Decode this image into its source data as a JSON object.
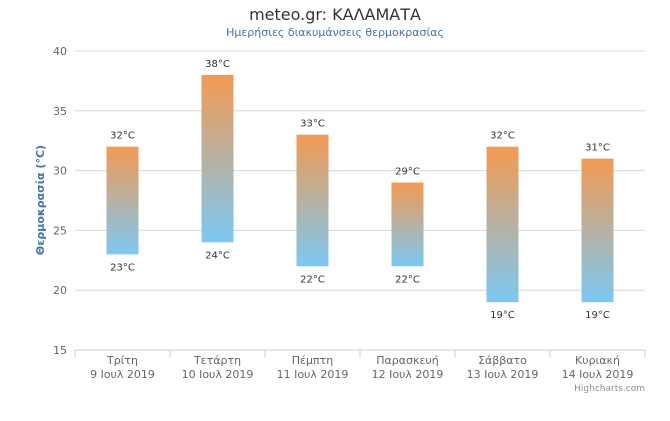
{
  "title": "meteo.gr: ΚΑΛΑΜΑΤΑ",
  "subtitle": "Ημερήσιες διακυμάνσεις θερμοκρασίας",
  "credits": "Highcharts.com",
  "colors": {
    "top": "#f39a52",
    "bottom": "#7cc8f4",
    "grid": "#d8d8d8",
    "axis_title": "#4572a7"
  },
  "chart_data": {
    "type": "bar",
    "subtype": "columnrange",
    "title": "meteo.gr: ΚΑΛΑΜΑΤΑ",
    "subtitle": "Ημερήσιες διακυμάνσεις θερμοκρασίας",
    "ylabel": "Θερμοκρασία (°C)",
    "ylim": [
      15,
      40
    ],
    "yticks": [
      15,
      20,
      25,
      30,
      35,
      40
    ],
    "grid": true,
    "categories": [
      {
        "day": "Τρίτη",
        "date": "9 Ιουλ 2019"
      },
      {
        "day": "Τετάρτη",
        "date": "10 Ιουλ 2019"
      },
      {
        "day": "Πέμπτη",
        "date": "11 Ιουλ 2019"
      },
      {
        "day": "Παρασκευή",
        "date": "12 Ιουλ 2019"
      },
      {
        "day": "Σάββατο",
        "date": "13 Ιουλ 2019"
      },
      {
        "day": "Κυριακή",
        "date": "14 Ιουλ 2019"
      }
    ],
    "low": [
      23,
      24,
      22,
      22,
      19,
      19
    ],
    "high": [
      32,
      38,
      33,
      29,
      32,
      31
    ],
    "low_labels": [
      "23°C",
      "24°C",
      "22°C",
      "22°C",
      "19°C",
      "19°C"
    ],
    "high_labels": [
      "32°C",
      "38°C",
      "33°C",
      "29°C",
      "32°C",
      "31°C"
    ]
  }
}
